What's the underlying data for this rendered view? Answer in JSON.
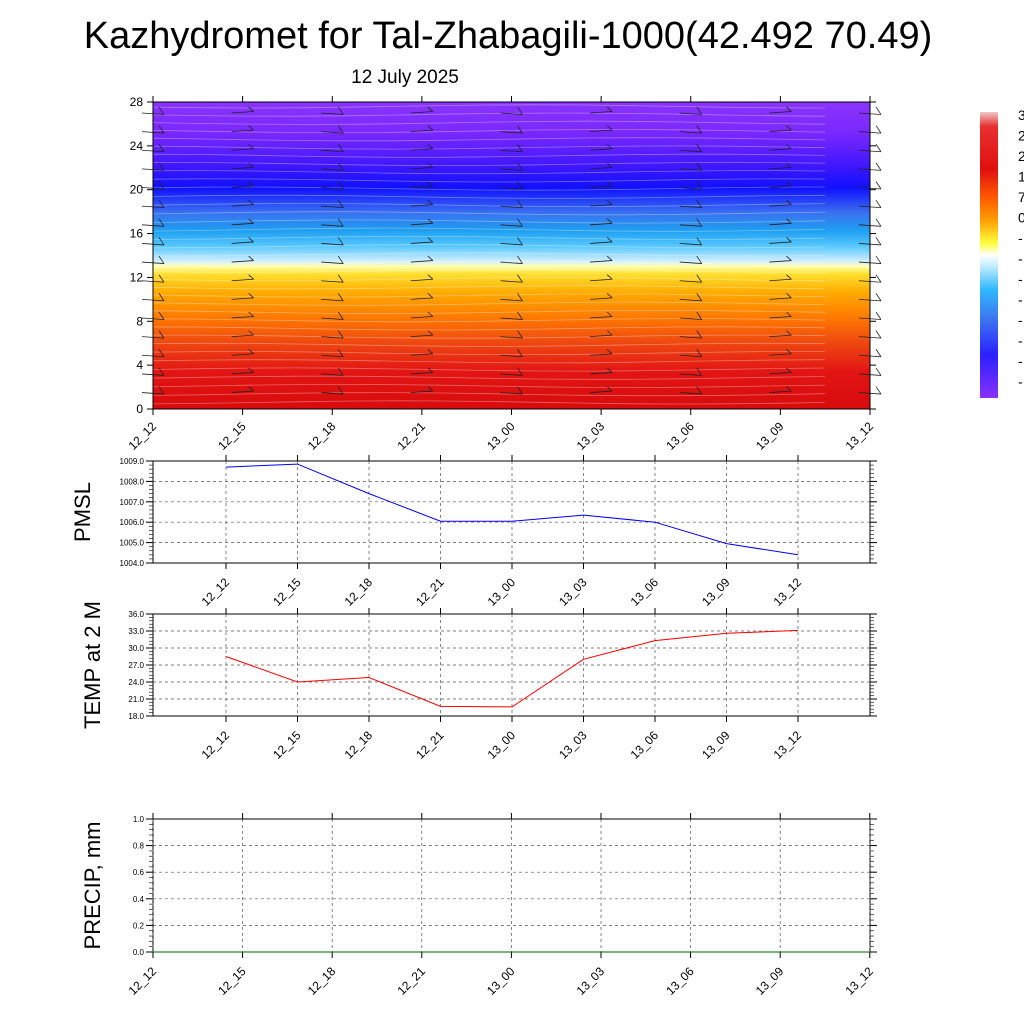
{
  "page": {
    "title": "Kazhydromet for Tal-Zhabagili-1000(42.492 70.49)",
    "date": "12 July 2025"
  },
  "chart_data": [
    {
      "type": "heatmap",
      "name": "temperature-cross-section",
      "x_ticks": [
        "12_12",
        "12_15",
        "12_18",
        "12_21",
        "13_00",
        "13_03",
        "13_06",
        "13_09",
        "13_12"
      ],
      "y_ticks": [
        0,
        4,
        8,
        12,
        16,
        20,
        24,
        28
      ],
      "ylim": [
        0,
        28
      ],
      "colorbar_labels": [
        "3",
        "2",
        "2",
        "1",
        "7",
        "0",
        "-",
        "-",
        "-",
        "-",
        "-",
        "-",
        "-",
        "-"
      ],
      "colors": [
        "#f2c0c0",
        "#e01010",
        "#e63020",
        "#ff6a00",
        "#ffb400",
        "#ffff40",
        "#bfe8ff",
        "#30b0ff",
        "#0090e0",
        "#4060f0",
        "#2020ff",
        "#6020ff",
        "#8a30ff"
      ],
      "grid": false
    },
    {
      "type": "line",
      "name": "pmsl",
      "ylabel": "PMSL",
      "categories": [
        "12_12",
        "12_15",
        "12_18",
        "12_21",
        "13_00",
        "13_03",
        "13_06",
        "13_09",
        "13_12"
      ],
      "values": [
        1008.7,
        1008.85,
        1007.4,
        1006.05,
        1006.05,
        1006.35,
        1006.0,
        1004.95,
        1004.4
      ],
      "y_ticks": [
        "1004.0",
        "1005.0",
        "1006.0",
        "1007.0",
        "1008.0",
        "1009.0"
      ],
      "ylim": [
        1004.0,
        1009.0
      ],
      "color": "#0000ff",
      "grid": true
    },
    {
      "type": "line",
      "name": "temp-2m",
      "ylabel": "TEMP at 2 M",
      "categories": [
        "12_12",
        "12_15",
        "12_18",
        "12_21",
        "13_00",
        "13_03",
        "13_06",
        "13_09",
        "13_12"
      ],
      "values": [
        28.5,
        24.0,
        24.8,
        19.7,
        19.6,
        28.0,
        31.3,
        32.6,
        33.1
      ],
      "y_ticks": [
        "18.0",
        "21.0",
        "24.0",
        "27.0",
        "30.0",
        "33.0",
        "36.0"
      ],
      "ylim": [
        18.0,
        36.0
      ],
      "color": "#ff0000",
      "grid": true
    },
    {
      "type": "line",
      "name": "precip",
      "ylabel": "PRECIP, mm",
      "x_ticks": [
        "12_12",
        "12_15",
        "12_18",
        "12_21",
        "13_00",
        "13_03",
        "13_06",
        "13_09",
        "13_12"
      ],
      "values": [
        0,
        0,
        0,
        0,
        0,
        0,
        0,
        0,
        0
      ],
      "y_ticks": [
        "0.0",
        "0.2",
        "0.4",
        "0.6",
        "0.8",
        "1.0"
      ],
      "ylim": [
        0.0,
        1.0
      ],
      "color": "#006400",
      "grid": true
    }
  ]
}
